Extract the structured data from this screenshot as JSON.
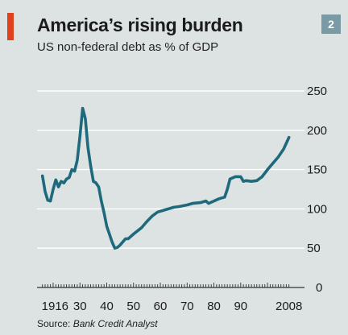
{
  "header": {
    "title": "America’s rising burden",
    "subtitle": "US non-federal debt as % of GDP",
    "badge": "2",
    "accent_color": "#e0401e",
    "badge_color": "#7a9aa6"
  },
  "source": {
    "label": "Source:",
    "value": "Bank Credit Analyst"
  },
  "chart_data": {
    "type": "line",
    "title": "America’s rising burden",
    "subtitle": "US non-federal debt as % of GDP",
    "xlim": [
      1914,
      2012
    ],
    "ylim": [
      0,
      250
    ],
    "x_ticks": [
      1916,
      1930,
      1940,
      1950,
      1960,
      1970,
      1980,
      1990,
      2008
    ],
    "x_tick_labels": [
      "1916",
      "30",
      "40",
      "50",
      "60",
      "70",
      "80",
      "90",
      "2008"
    ],
    "y_ticks": [
      0,
      50,
      100,
      150,
      200,
      250
    ],
    "y_tick_labels": [
      "0",
      "50",
      "100",
      "150",
      "200",
      "250"
    ],
    "y_axis_side": "right",
    "grid": true,
    "line_color": "#1e6a7c",
    "series": [
      {
        "x": [
          1916,
          1917,
          1918,
          1919,
          1920,
          1921,
          1922,
          1923,
          1924,
          1925,
          1926,
          1927,
          1928,
          1929,
          1930,
          1931,
          1932,
          1933,
          1934,
          1935,
          1936,
          1937,
          1938,
          1939,
          1940,
          1941,
          1942,
          1943,
          1944,
          1945,
          1946,
          1947,
          1948,
          1950,
          1953,
          1955,
          1957,
          1959,
          1961,
          1963,
          1965,
          1967,
          1970,
          1972,
          1975,
          1977,
          1978,
          1980,
          1982,
          1984,
          1985,
          1986,
          1988,
          1990,
          1991,
          1992,
          1994,
          1996,
          1998,
          2000,
          2002,
          2004,
          2006,
          2008
        ],
        "y": [
          142,
          122,
          111,
          110,
          125,
          137,
          128,
          135,
          133,
          138,
          140,
          150,
          148,
          162,
          192,
          228,
          215,
          178,
          155,
          135,
          133,
          128,
          110,
          95,
          78,
          68,
          58,
          50,
          51,
          54,
          58,
          62,
          62,
          68,
          76,
          84,
          91,
          96,
          98,
          100,
          102,
          103,
          105,
          107,
          108,
          110,
          107,
          110,
          113,
          115,
          125,
          138,
          141,
          141,
          135,
          136,
          135,
          136,
          141,
          150,
          158,
          166,
          176,
          191
        ]
      }
    ]
  }
}
